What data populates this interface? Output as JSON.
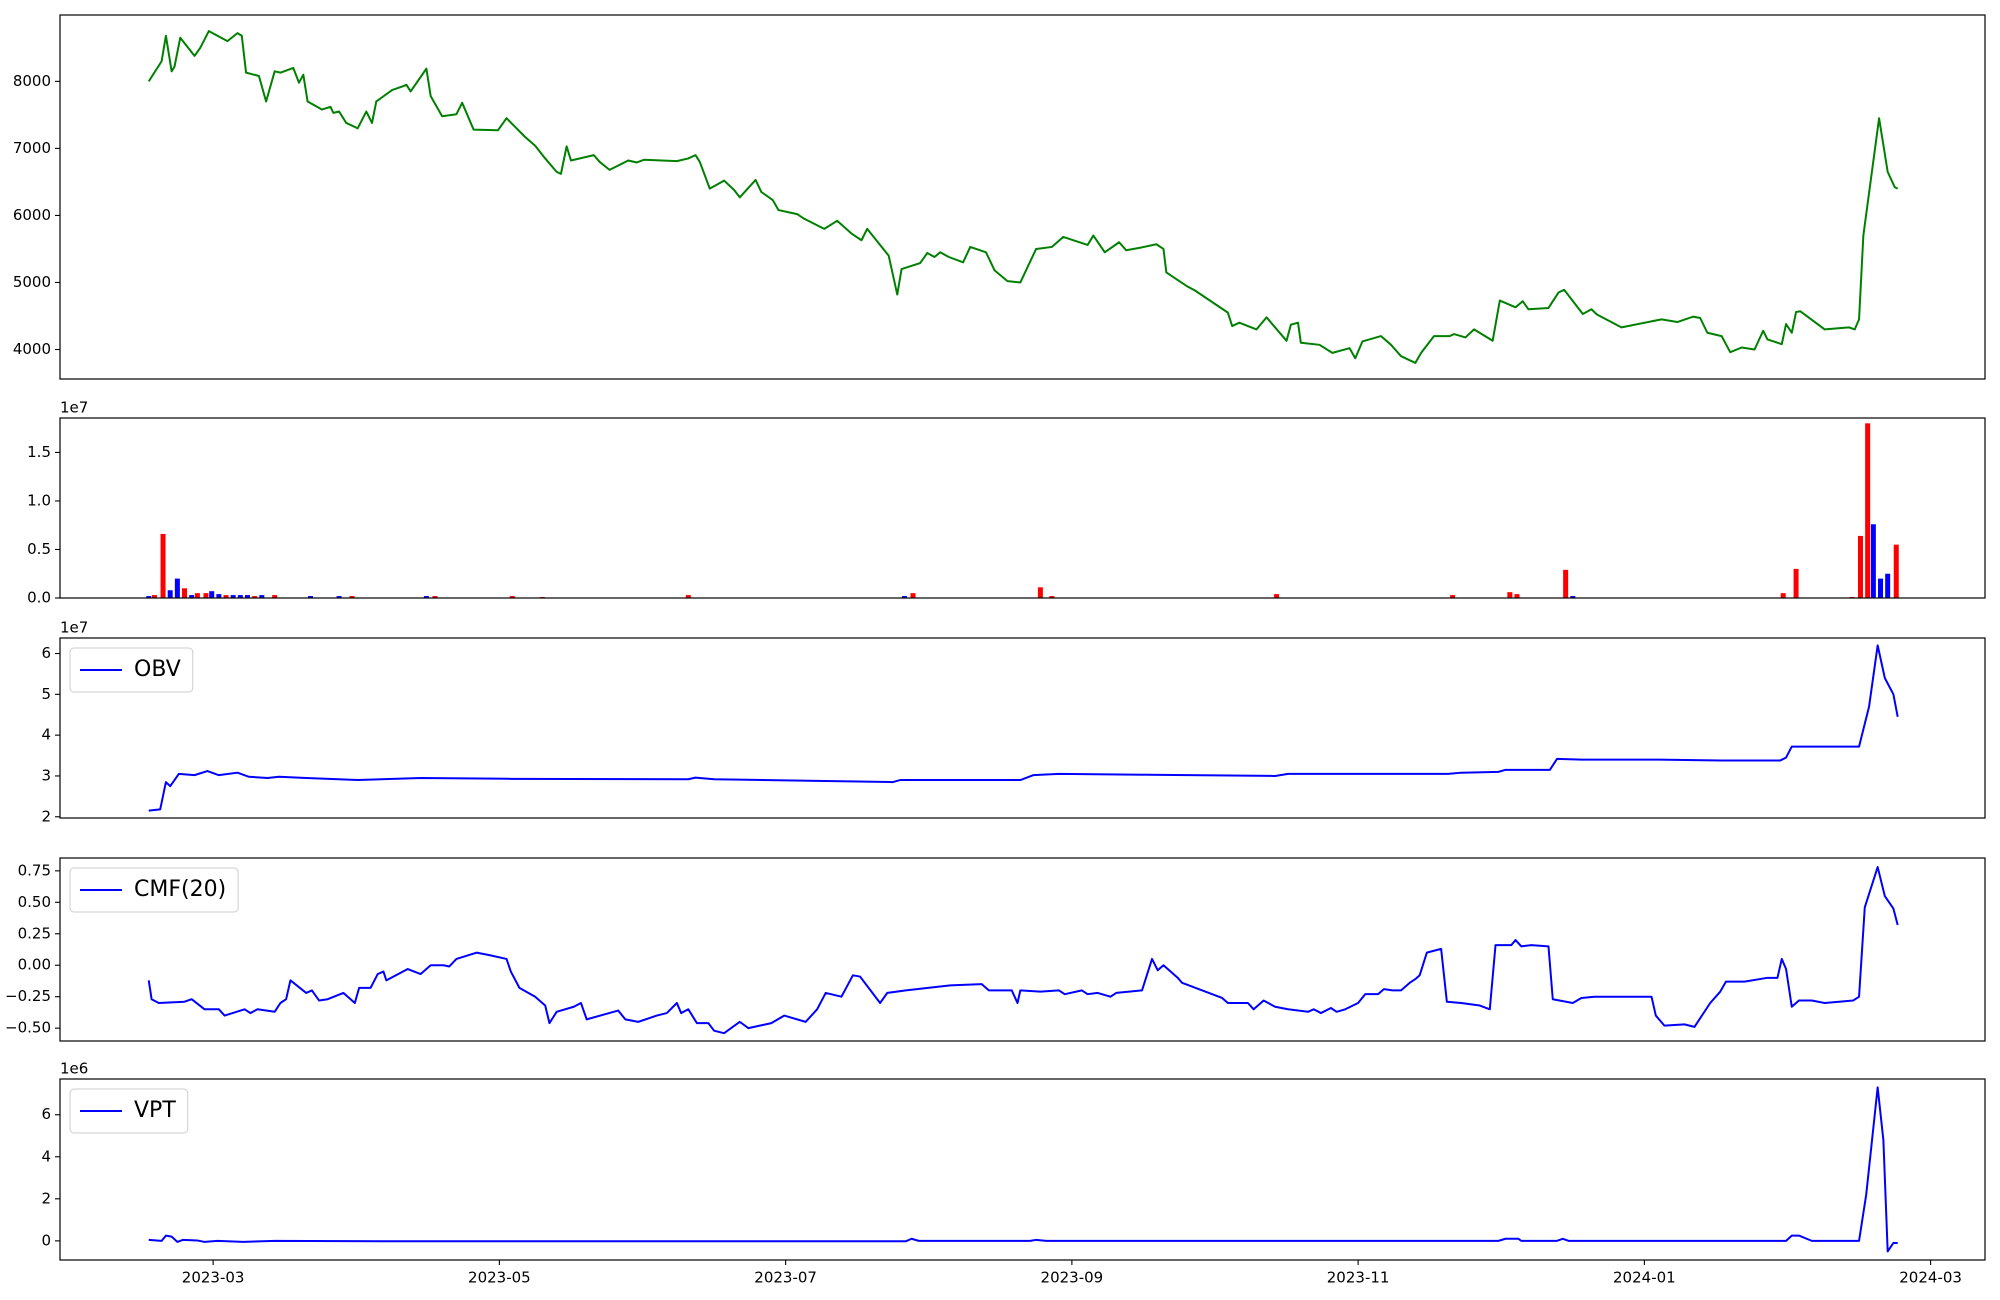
{
  "chart_data": [
    {
      "type": "line",
      "color": "#008000",
      "xlim": [
        0.93,
        14.38
      ],
      "ylim": [
        3560,
        8990
      ],
      "yticks": [
        4000,
        5000,
        6000,
        7000,
        8000
      ],
      "x": [
        1.55,
        1.64,
        1.67,
        1.71,
        1.73,
        1.77,
        1.87,
        1.91,
        1.97,
        2.1,
        2.17,
        2.2,
        2.23,
        2.32,
        2.37,
        2.43,
        2.47,
        2.56,
        2.6,
        2.63,
        2.66,
        2.76,
        2.82,
        2.84,
        2.88,
        2.93,
        3.01,
        3.07,
        3.11,
        3.14,
        3.25,
        3.33,
        3.35,
        3.38,
        3.49,
        3.52,
        3.6,
        3.7,
        3.74,
        3.82,
        3.99,
        4.05,
        4.18,
        4.25,
        4.32,
        4.4,
        4.43,
        4.47,
        4.5,
        4.66,
        4.7,
        4.77,
        4.9,
        4.96,
        5.01,
        5.24,
        5.32,
        5.37,
        5.4,
        5.47,
        5.57,
        5.64,
        5.68,
        5.79,
        5.83,
        5.91,
        5.95,
        6.08,
        6.13,
        6.27,
        6.36,
        6.46,
        6.53,
        6.57,
        6.72,
        6.78,
        6.81,
        6.94,
        6.99,
        7.04,
        7.08,
        7.14,
        7.24,
        7.29,
        7.4,
        7.46,
        7.55,
        7.64,
        7.75,
        7.86,
        7.94,
        8.11,
        8.15,
        8.23,
        8.33,
        8.38,
        8.48,
        8.59,
        8.64,
        8.66,
        8.8,
        8.86,
        9.09,
        9.12,
        9.17,
        9.29,
        9.36,
        9.5,
        9.53,
        9.58,
        9.6,
        9.73,
        9.82,
        9.94,
        9.98,
        10.03,
        10.16,
        10.23,
        10.3,
        10.4,
        10.44,
        10.53,
        10.64,
        10.67,
        10.75,
        10.81,
        10.94,
        10.99,
        11.1,
        11.15,
        11.19,
        11.33,
        11.4,
        11.44,
        11.57,
        11.63,
        11.67,
        11.84,
        12.12,
        12.23,
        12.34,
        12.39,
        12.44,
        12.54,
        12.6,
        12.68,
        12.77,
        12.83,
        12.86,
        12.96,
        12.99,
        13.03,
        13.06,
        13.09,
        13.26,
        13.43,
        13.47,
        13.5,
        13.53,
        13.64,
        13.7,
        13.75,
        13.77
      ],
      "values": [
        8000,
        8300,
        8680,
        8150,
        8220,
        8650,
        8380,
        8500,
        8750,
        8600,
        8720,
        8680,
        8130,
        8080,
        7700,
        8150,
        8130,
        8200,
        7980,
        8100,
        7700,
        7580,
        7620,
        7530,
        7550,
        7380,
        7300,
        7550,
        7380,
        7700,
        7870,
        7930,
        7950,
        7850,
        8190,
        7780,
        7480,
        7510,
        7680,
        7280,
        7270,
        7450,
        7170,
        7040,
        6850,
        6650,
        6620,
        7030,
        6820,
        6900,
        6800,
        6680,
        6820,
        6790,
        6830,
        6810,
        6850,
        6900,
        6800,
        6400,
        6520,
        6380,
        6270,
        6530,
        6350,
        6230,
        6080,
        6020,
        5950,
        5800,
        5920,
        5730,
        5630,
        5800,
        5400,
        4820,
        5200,
        5290,
        5440,
        5380,
        5450,
        5380,
        5300,
        5530,
        5450,
        5180,
        5020,
        5000,
        5500,
        5530,
        5680,
        5560,
        5700,
        5450,
        5600,
        5480,
        5520,
        5570,
        5500,
        5150,
        4950,
        4880,
        4550,
        4350,
        4400,
        4300,
        4480,
        4130,
        4370,
        4400,
        4100,
        4070,
        3950,
        4020,
        3870,
        4120,
        4200,
        4070,
        3900,
        3800,
        3950,
        4200,
        4200,
        4230,
        4180,
        4300,
        4130,
        4730,
        4630,
        4720,
        4600,
        4620,
        4850,
        4890,
        4530,
        4600,
        4520,
        4330,
        4450,
        4410,
        4490,
        4470,
        4250,
        4200,
        3960,
        4030,
        4000,
        4280,
        4150,
        4080,
        4380,
        4250,
        4560,
        4570,
        4300,
        4330,
        4300,
        4450,
        5700,
        7450,
        6650,
        6420,
        6400
      ]
    },
    {
      "type": "bar",
      "y_offset_label": "1e7",
      "xlim": [
        0.93,
        14.38
      ],
      "ylim": [
        0,
        18550000
      ],
      "yticks": [
        {
          "value": 0,
          "label": "0.0"
        },
        {
          "value": 5000000,
          "label": "0.5"
        },
        {
          "value": 10000000,
          "label": "1.0"
        },
        {
          "value": 15000000,
          "label": "1.5"
        }
      ],
      "x": [
        1.55,
        1.59,
        1.65,
        1.7,
        1.75,
        1.8,
        1.85,
        1.89,
        1.95,
        1.99,
        2.04,
        2.09,
        2.14,
        2.19,
        2.24,
        2.29,
        2.34,
        2.43,
        2.68,
        2.88,
        2.97,
        3.49,
        3.55,
        4.09,
        4.3,
        5.32,
        6.83,
        6.89,
        7.78,
        7.86,
        9.43,
        10.66,
        11.06,
        11.11,
        11.45,
        11.5,
        12.97,
        13.06,
        13.45,
        13.51,
        13.56,
        13.6,
        13.65,
        13.7,
        13.76
      ],
      "values": [
        200000,
        300000,
        6600000,
        800000,
        2000000,
        1000000,
        300000,
        500000,
        500000,
        700000,
        400000,
        300000,
        300000,
        300000,
        300000,
        200000,
        300000,
        300000,
        200000,
        200000,
        200000,
        200000,
        200000,
        200000,
        100000,
        300000,
        200000,
        500000,
        1100000,
        200000,
        400000,
        300000,
        600000,
        400000,
        2900000,
        200000,
        500000,
        3000000,
        100000,
        6400000,
        18000000,
        7600000,
        2000000,
        2500000,
        5500000
      ],
      "colors": [
        "#0000ff",
        "#ff0000",
        "#ff0000",
        "#0000ff",
        "#0000ff",
        "#ff0000",
        "#0000ff",
        "#ff0000",
        "#ff0000",
        "#0000ff",
        "#0000ff",
        "#ff0000",
        "#0000ff",
        "#0000ff",
        "#0000ff",
        "#ff0000",
        "#0000ff",
        "#ff0000",
        "#0000ff",
        "#0000ff",
        "#ff0000",
        "#0000ff",
        "#ff0000",
        "#ff0000",
        "#ff0000",
        "#ff0000",
        "#0000ff",
        "#ff0000",
        "#ff0000",
        "#ff0000",
        "#ff0000",
        "#ff0000",
        "#ff0000",
        "#ff0000",
        "#ff0000",
        "#0000ff",
        "#ff0000",
        "#ff0000",
        "#ff0000",
        "#ff0000",
        "#ff0000",
        "#0000ff",
        "#0000ff",
        "#0000ff",
        "#ff0000"
      ]
    },
    {
      "type": "line",
      "y_offset_label": "1e7",
      "legend": "upper left",
      "xlim": [
        0.93,
        14.38
      ],
      "ylim": [
        19700000,
        63800000
      ],
      "yticks": [
        {
          "value": 20000000,
          "label": "2"
        },
        {
          "value": 30000000,
          "label": "3"
        },
        {
          "value": 40000000,
          "label": "4"
        },
        {
          "value": 50000000,
          "label": "5"
        },
        {
          "value": 60000000,
          "label": "6"
        }
      ],
      "x": [
        1.55,
        1.63,
        1.67,
        1.7,
        1.76,
        1.87,
        1.96,
        2.04,
        2.17,
        2.25,
        2.38,
        2.46,
        2.65,
        3.01,
        3.45,
        4.08,
        5.32,
        5.37,
        5.5,
        6.22,
        6.75,
        6.8,
        7.64,
        7.73,
        7.91,
        8.53,
        9.42,
        9.51,
        10.63,
        10.72,
        10.98,
        11.03,
        11.34,
        11.39,
        11.56,
        12.1,
        12.54,
        12.95,
        12.99,
        13.03,
        13.17,
        13.5,
        13.57,
        13.63,
        13.68,
        13.74,
        13.77
      ],
      "series": [
        {
          "name": "OBV",
          "color": "#0000ff",
          "values": [
            21500000,
            21800000,
            28500000,
            27500000,
            30500000,
            30200000,
            31200000,
            30200000,
            30800000,
            29800000,
            29500000,
            29800000,
            29500000,
            29000000,
            29500000,
            29300000,
            29200000,
            29600000,
            29200000,
            28800000,
            28500000,
            29000000,
            29000000,
            30200000,
            30500000,
            30300000,
            30000000,
            30500000,
            30500000,
            30800000,
            31000000,
            31500000,
            31500000,
            34200000,
            34000000,
            34000000,
            33800000,
            33800000,
            34500000,
            37200000,
            37200000,
            37200000,
            47000000,
            62000000,
            54000000,
            50000000,
            44500000
          ]
        }
      ]
    },
    {
      "type": "line",
      "legend": "upper left",
      "xlim": [
        0.93,
        14.38
      ],
      "ylim": [
        -0.602,
        0.852
      ],
      "yticks": [
        {
          "value": -0.5,
          "label": "−0.50"
        },
        {
          "value": -0.25,
          "label": "−0.25"
        },
        {
          "value": 0,
          "label": "0.00"
        },
        0.25,
        {
          "value": 0.5,
          "label": "0.50"
        },
        0.75
      ],
      "x": [
        1.55,
        1.57,
        1.62,
        1.8,
        1.85,
        1.94,
        2.04,
        2.08,
        2.22,
        2.26,
        2.31,
        2.43,
        2.47,
        2.51,
        2.54,
        2.65,
        2.69,
        2.74,
        2.8,
        2.91,
        2.99,
        3.02,
        3.1,
        3.15,
        3.19,
        3.21,
        3.36,
        3.45,
        3.52,
        3.61,
        3.65,
        3.7,
        3.84,
        3.93,
        4.05,
        4.08,
        4.14,
        4.25,
        4.32,
        4.35,
        4.4,
        4.52,
        4.57,
        4.61,
        4.83,
        4.88,
        4.97,
        5.1,
        5.17,
        5.24,
        5.27,
        5.32,
        5.38,
        5.46,
        5.5,
        5.57,
        5.68,
        5.74,
        5.9,
        5.99,
        6.14,
        6.22,
        6.28,
        6.39,
        6.47,
        6.52,
        6.66,
        6.71,
        6.84,
        7.15,
        7.37,
        7.42,
        7.58,
        7.62,
        7.64,
        7.78,
        7.91,
        7.95,
        8.07,
        8.11,
        8.18,
        8.27,
        8.31,
        8.49,
        8.56,
        8.6,
        8.64,
        8.74,
        8.77,
        9.05,
        9.09,
        9.23,
        9.27,
        9.34,
        9.42,
        9.51,
        9.65,
        9.69,
        9.74,
        9.81,
        9.85,
        9.91,
        10.0,
        10.05,
        10.14,
        10.18,
        10.24,
        10.3,
        10.36,
        10.4,
        10.43,
        10.48,
        10.58,
        10.62,
        10.72,
        10.85,
        10.92,
        10.96,
        11.07,
        11.1,
        11.14,
        11.21,
        11.33,
        11.36,
        11.5,
        11.56,
        11.65,
        12.05,
        12.08,
        12.14,
        12.28,
        12.35,
        12.46,
        12.53,
        12.57,
        12.7,
        12.86,
        12.93,
        12.96,
        12.99,
        13.03,
        13.08,
        13.17,
        13.26,
        13.46,
        13.5,
        13.54,
        13.63,
        13.68,
        13.74,
        13.77
      ],
      "series": [
        {
          "name": "CMF(20)",
          "color": "#0000ff",
          "values": [
            -0.12,
            -0.27,
            -0.3,
            -0.29,
            -0.27,
            -0.35,
            -0.35,
            -0.4,
            -0.35,
            -0.38,
            -0.35,
            -0.37,
            -0.3,
            -0.27,
            -0.12,
            -0.22,
            -0.2,
            -0.28,
            -0.27,
            -0.22,
            -0.3,
            -0.18,
            -0.18,
            -0.07,
            -0.05,
            -0.12,
            -0.03,
            -0.07,
            0.0,
            0.0,
            -0.01,
            0.05,
            0.1,
            0.08,
            0.05,
            -0.05,
            -0.18,
            -0.25,
            -0.32,
            -0.46,
            -0.37,
            -0.33,
            -0.3,
            -0.43,
            -0.36,
            -0.43,
            -0.45,
            -0.4,
            -0.38,
            -0.3,
            -0.38,
            -0.35,
            -0.46,
            -0.46,
            -0.52,
            -0.54,
            -0.45,
            -0.5,
            -0.46,
            -0.4,
            -0.45,
            -0.35,
            -0.22,
            -0.25,
            -0.08,
            -0.09,
            -0.3,
            -0.22,
            -0.2,
            -0.16,
            -0.15,
            -0.2,
            -0.2,
            -0.3,
            -0.2,
            -0.21,
            -0.2,
            -0.23,
            -0.2,
            -0.23,
            -0.22,
            -0.25,
            -0.22,
            -0.2,
            0.05,
            -0.04,
            0.0,
            -0.1,
            -0.14,
            -0.26,
            -0.3,
            -0.3,
            -0.35,
            -0.28,
            -0.33,
            -0.35,
            -0.37,
            -0.35,
            -0.38,
            -0.34,
            -0.37,
            -0.35,
            -0.3,
            -0.23,
            -0.23,
            -0.19,
            -0.2,
            -0.2,
            -0.14,
            -0.11,
            -0.08,
            0.1,
            0.13,
            -0.29,
            -0.3,
            -0.32,
            -0.35,
            0.16,
            0.16,
            0.2,
            0.15,
            0.16,
            0.15,
            -0.27,
            -0.3,
            -0.26,
            -0.25,
            -0.25,
            -0.4,
            -0.48,
            -0.47,
            -0.49,
            -0.3,
            -0.21,
            -0.13,
            -0.13,
            -0.1,
            -0.1,
            0.05,
            -0.03,
            -0.33,
            -0.28,
            -0.28,
            -0.3,
            -0.28,
            -0.25,
            0.46,
            0.78,
            0.55,
            0.45,
            0.32
          ]
        }
      ]
    },
    {
      "type": "line",
      "y_offset_label": "1e6",
      "legend": "upper left",
      "xlim": [
        0.93,
        14.38
      ],
      "ylim": [
        -910000,
        7700000
      ],
      "yticks": [
        0,
        {
          "value": 2000000,
          "label": "2"
        },
        {
          "value": 4000000,
          "label": "4"
        },
        {
          "value": 6000000,
          "label": "6"
        }
      ],
      "xticks": [
        {
          "value": 2,
          "label": "2023-03"
        },
        {
          "value": 4,
          "label": "2023-05"
        },
        {
          "value": 6,
          "label": "2023-07"
        },
        {
          "value": 8,
          "label": "2023-09"
        },
        {
          "value": 10,
          "label": "2023-11"
        },
        {
          "value": 12,
          "label": "2024-01"
        },
        {
          "value": 14,
          "label": "2024-03"
        }
      ],
      "x": [
        1.55,
        1.64,
        1.67,
        1.71,
        1.75,
        1.79,
        1.89,
        1.94,
        2.03,
        2.21,
        2.43,
        3.19,
        6.84,
        6.88,
        6.93,
        7.71,
        7.75,
        7.82,
        10.98,
        11.03,
        11.12,
        11.14,
        11.39,
        11.43,
        11.47,
        12.99,
        13.03,
        13.08,
        13.17,
        13.5,
        13.55,
        13.63,
        13.67,
        13.7,
        13.74,
        13.77
      ],
      "series": [
        {
          "name": "VPT",
          "color": "#0000ff",
          "values": [
            50000,
            0,
            250000,
            200000,
            -50000,
            50000,
            20000,
            -50000,
            0,
            -50000,
            0,
            -20000,
            -20000,
            100000,
            0,
            0,
            50000,
            0,
            0,
            100000,
            100000,
            0,
            0,
            100000,
            0,
            0,
            250000,
            250000,
            0,
            0,
            2200000,
            7300000,
            4800000,
            -500000,
            -100000,
            -100000
          ]
        }
      ]
    }
  ]
}
